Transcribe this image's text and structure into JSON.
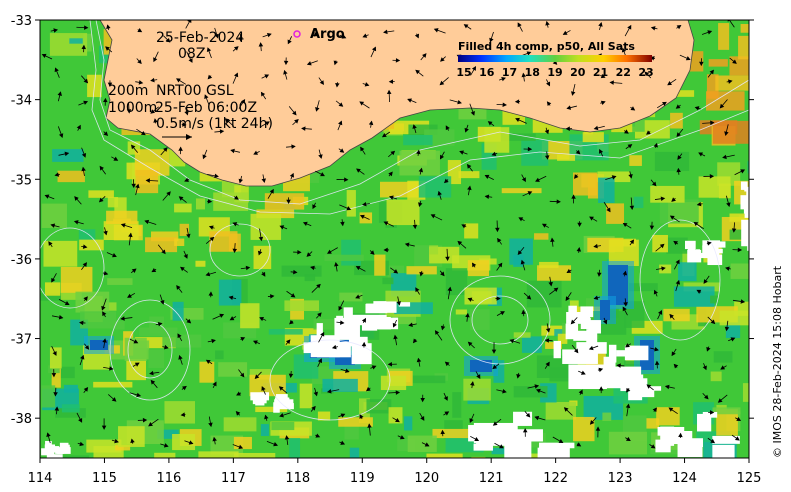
{
  "map": {
    "lon_ticks": [
      "114",
      "115",
      "116",
      "117",
      "118",
      "119",
      "120",
      "121",
      "122",
      "123",
      "124",
      "125"
    ],
    "lat_ticks": [
      "-33",
      "-34",
      "-35",
      "-36",
      "-37",
      "-38"
    ],
    "lon_range": [
      114,
      125
    ],
    "lat_range": [
      -38.5,
      -33.0
    ]
  },
  "annotations": {
    "date": "25-Feb-2024",
    "time": "08Z",
    "contour_label_200": "200m",
    "contour_label_1000": "1000m",
    "current_product": "NRT00 GSL",
    "current_time": "25-Feb 06:00Z",
    "scale_arrow_label": "0.5m/s (1kt 24h)",
    "argo_label": "Argo"
  },
  "colorbar": {
    "title": "Filled 4h comp, p50, All Sats",
    "ticks": [
      "15",
      "16",
      "17",
      "18",
      "19",
      "20",
      "21",
      "22",
      "23"
    ],
    "colors": [
      "#00007f",
      "#0030ff",
      "#00a8ff",
      "#20e0c0",
      "#60d040",
      "#c0e020",
      "#ffd000",
      "#ff7000",
      "#d02000",
      "#800000"
    ]
  },
  "credit": "© IMOS 28-Feb-2024 15:08 Hobart",
  "colors": {
    "land": "#ffcc99",
    "argo": "#e020e0"
  }
}
